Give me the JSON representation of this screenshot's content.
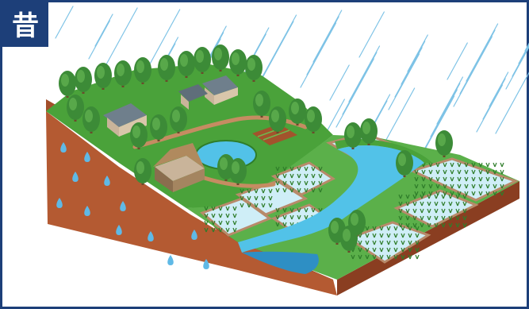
{
  "badge": {
    "label": "昔"
  },
  "colors": {
    "frame": "#1d3f79",
    "badge": "#1d3f79",
    "rain": "#7ec3e6",
    "grass": "#4aa23a",
    "grass_dark": "#2f7d2a",
    "soil": "#b45a32",
    "soil_dark": "#8a3e21",
    "river": "#52c2e8",
    "water_drop": "#5fb9e6",
    "paddy": "#cfeef7",
    "path": "#b88a6a",
    "tree": "#3c8b37",
    "trunk": "#6b4a2b",
    "roof_thatch": "#b08a5e",
    "roof_tile": "#6f7f8c"
  },
  "scene": {
    "illustration": "old-landscape",
    "elements": [
      "rain",
      "forest",
      "houses",
      "pond",
      "rice-paddies",
      "river",
      "groundwater"
    ]
  }
}
